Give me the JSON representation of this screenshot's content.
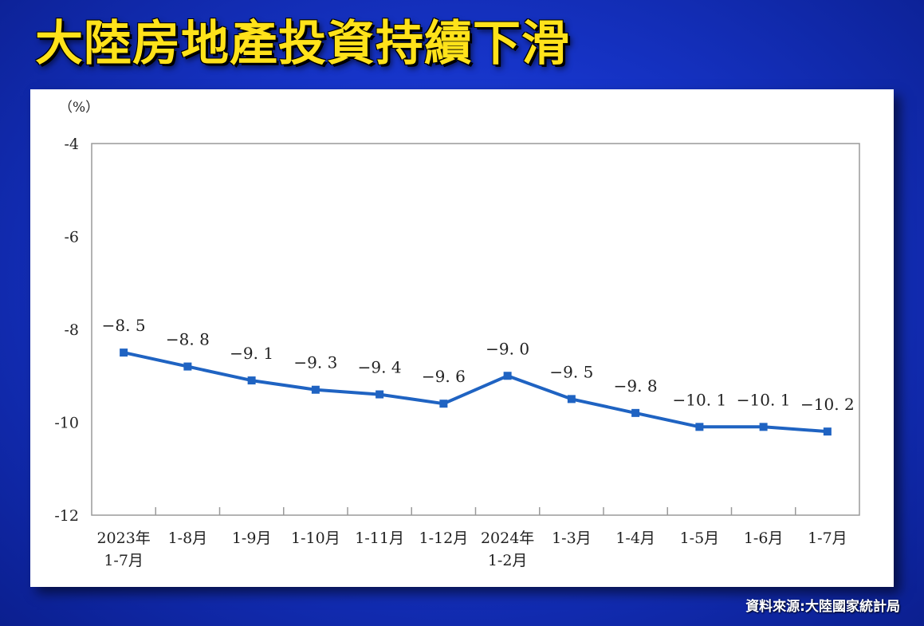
{
  "headline": "大陸房地產投資持續下滑",
  "source": "資料來源:大陸國家統計局",
  "colors": {
    "line": "#1f63c2",
    "headline": "#ffe21a",
    "background": "#1634c8"
  },
  "chart_data": {
    "type": "line",
    "unit_label": "（%）",
    "ylim": [
      -12,
      -4
    ],
    "yticks": [
      -4,
      -6,
      -8,
      -10,
      -12
    ],
    "categories": [
      [
        "2023年",
        "1-7月"
      ],
      [
        "1-8月"
      ],
      [
        "1-9月"
      ],
      [
        "1-10月"
      ],
      [
        "1-11月"
      ],
      [
        "1-12月"
      ],
      [
        "2024年",
        "1-2月"
      ],
      [
        "1-3月"
      ],
      [
        "1-4月"
      ],
      [
        "1-5月"
      ],
      [
        "1-6月"
      ],
      [
        "1-7月"
      ]
    ],
    "values": [
      -8.5,
      -8.8,
      -9.1,
      -9.3,
      -9.4,
      -9.6,
      -9.0,
      -9.5,
      -9.8,
      -10.1,
      -10.1,
      -10.2
    ],
    "data_labels": [
      "−8. 5",
      "−8. 8",
      "−9. 1",
      "−9. 3",
      "−9. 4",
      "−9. 6",
      "−9. 0",
      "−9. 5",
      "−9. 8",
      "−10. 1",
      "−10. 1",
      "−10. 2"
    ],
    "grid": false,
    "legend": "none"
  }
}
